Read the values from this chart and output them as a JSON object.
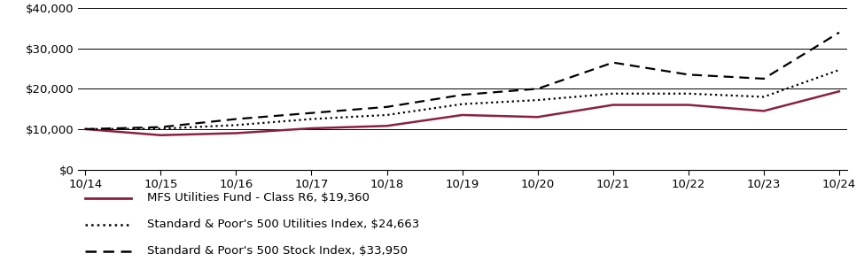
{
  "x_labels": [
    "10/14",
    "10/15",
    "10/16",
    "10/17",
    "10/18",
    "10/19",
    "10/20",
    "10/21",
    "10/22",
    "10/23",
    "10/24"
  ],
  "x_values": [
    0,
    1,
    2,
    3,
    4,
    5,
    6,
    7,
    8,
    9,
    10
  ],
  "mfs_values": [
    10000,
    8500,
    9000,
    10200,
    10800,
    13500,
    13000,
    16000,
    16000,
    14500,
    19360
  ],
  "utilities_values": [
    10000,
    10100,
    11000,
    12500,
    13500,
    16200,
    17200,
    18800,
    18800,
    18000,
    24663
  ],
  "stock_values": [
    10000,
    10500,
    12500,
    14000,
    15500,
    18500,
    20000,
    26500,
    23500,
    22500,
    33950
  ],
  "mfs_color": "#8B2040",
  "utilities_color": "#000000",
  "stock_color": "#000000",
  "ylim": [
    0,
    40000
  ],
  "yticks": [
    0,
    10000,
    20000,
    30000,
    40000
  ],
  "ytick_labels": [
    "$0",
    "$10,000",
    "$20,000",
    "$30,000",
    "$40,000"
  ],
  "legend_labels": [
    "MFS Utilities Fund - Class R6, $19,360",
    "Standard & Poor's 500 Utilities Index, $24,663",
    "Standard & Poor's 500 Stock Index, $33,950"
  ],
  "background_color": "#ffffff",
  "grid_color": "#000000",
  "font_size": 9.5
}
